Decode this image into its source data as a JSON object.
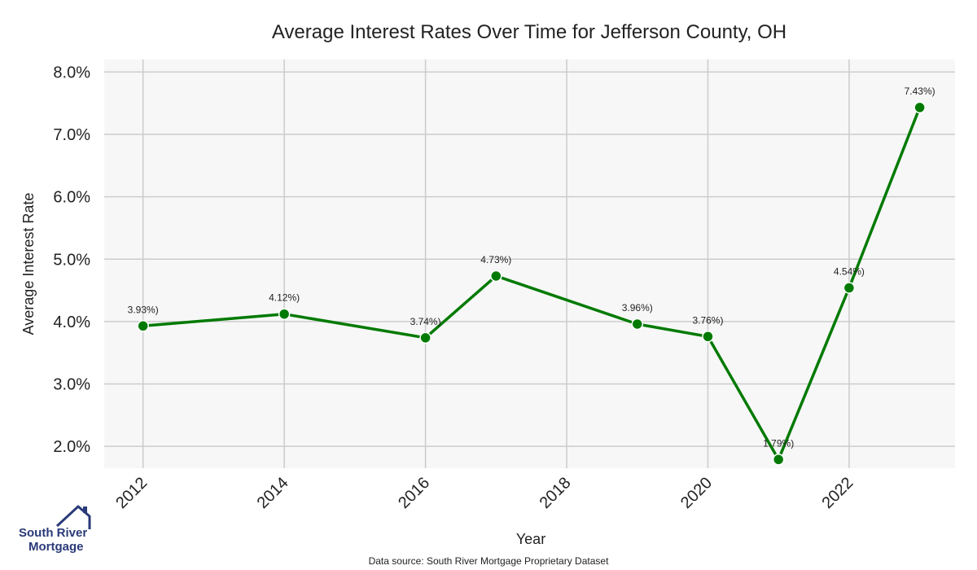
{
  "chart_data": {
    "type": "line",
    "title": "Average Interest Rates Over Time for Jefferson County, OH",
    "xlabel": "Year",
    "ylabel": "Average Interest Rate",
    "xlim": [
      2011.45,
      2023.5
    ],
    "ylim": [
      1.65,
      8.2
    ],
    "x_ticks": [
      2012,
      2014,
      2016,
      2018,
      2020,
      2022
    ],
    "x_tick_labels": [
      "2012",
      "2014",
      "2016",
      "2018",
      "2020",
      "2022"
    ],
    "y_ticks": [
      2,
      3,
      4,
      5,
      6,
      7,
      8
    ],
    "y_tick_labels": [
      "2.0%",
      "3.0%",
      "4.0%",
      "5.0%",
      "6.0%",
      "7.0%",
      "8.0%"
    ],
    "grid": true,
    "series": [
      {
        "name": "Average Interest Rate",
        "color": "#007a00",
        "x": [
          2012,
          2014,
          2016,
          2017,
          2019,
          2020,
          2021,
          2022,
          2023
        ],
        "values": [
          3.93,
          4.12,
          3.74,
          4.73,
          3.96,
          3.76,
          1.79,
          4.54,
          7.43
        ],
        "labels": [
          "3.93%)",
          "4.12%)",
          "3.74%)",
          "4.73%)",
          "3.96%)",
          "3.76%)",
          "1.79%)",
          "4.54%)",
          "7.43%)"
        ]
      }
    ]
  },
  "footer": {
    "source_text": "Data source: South River Mortgage Proprietary Dataset"
  },
  "logo": {
    "line1": "South River",
    "line2": "Mortgage",
    "color": "#2a3a78"
  },
  "colors": {
    "plot_background": "#f7f7f7",
    "grid": "#cccccc",
    "line": "#007a00"
  }
}
